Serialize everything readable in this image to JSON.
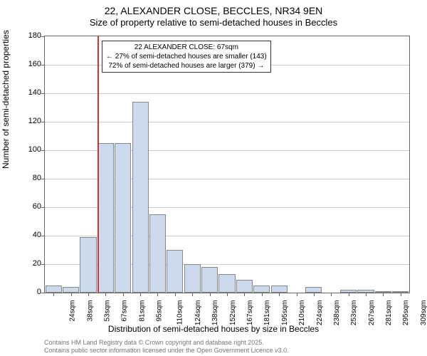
{
  "title": "22, ALEXANDER CLOSE, BECCLES, NR34 9EN",
  "subtitle": "Size of property relative to semi-detached houses in Beccles",
  "ylabel": "Number of semi-detached properties",
  "xlabel": "Distribution of semi-detached houses by size in Beccles",
  "chart": {
    "type": "histogram",
    "background_color": "#ffffff",
    "grid_color": "#cccccc",
    "bar_fill": "#cdd9ed",
    "bar_border": "#888888",
    "reference_line_color": "#d93030",
    "reference_value": 67,
    "ylim": [
      0,
      180
    ],
    "ytick_step": 20,
    "yticks": [
      0,
      20,
      40,
      60,
      80,
      100,
      120,
      140,
      160,
      180
    ],
    "label_fontsize": 12,
    "tick_fontsize": 10,
    "bar_width": 0.95,
    "categories": [
      "24sqm",
      "38sqm",
      "53sqm",
      "67sqm",
      "81sqm",
      "95sqm",
      "110sqm",
      "124sqm",
      "138sqm",
      "152sqm",
      "167sqm",
      "181sqm",
      "195sqm",
      "210sqm",
      "224sqm",
      "238sqm",
      "253sqm",
      "267sqm",
      "281sqm",
      "295sqm",
      "309sqm"
    ],
    "values": [
      5,
      4,
      39,
      105,
      105,
      134,
      55,
      30,
      20,
      18,
      13,
      9,
      5,
      5,
      0,
      4,
      0,
      2,
      2,
      1,
      1
    ]
  },
  "annotation": {
    "line1": "22 ALEXANDER CLOSE: 67sqm",
    "line2": "← 27% of semi-detached houses are smaller (143)",
    "line3": "72% of semi-detached houses are larger (379) →"
  },
  "footer": {
    "line1": "Contains HM Land Registry data © Crown copyright and database right 2025.",
    "line2": "Contains public sector information licensed under the Open Government Licence v3.0."
  }
}
